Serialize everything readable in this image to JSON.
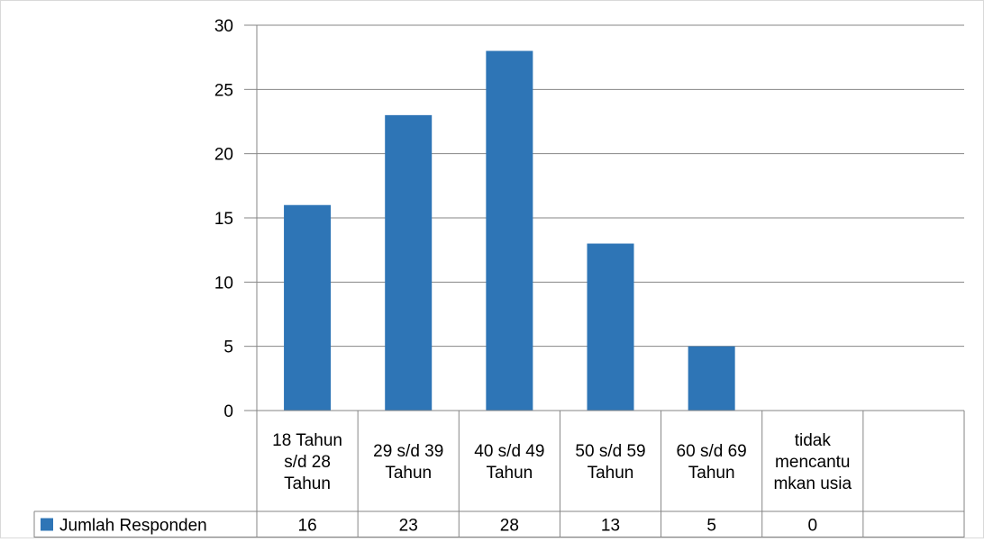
{
  "chart_data": {
    "type": "bar",
    "categories": [
      [
        "18 Tahun",
        "s/d 28",
        "Tahun"
      ],
      [
        "29 s/d 39",
        "Tahun"
      ],
      [
        "40 s/d 49",
        "Tahun"
      ],
      [
        "50 s/d 59",
        "Tahun"
      ],
      [
        "60 s/d 69",
        "Tahun"
      ],
      [
        "tidak",
        "mencantu",
        "mkan usia"
      ],
      [
        ""
      ]
    ],
    "series": [
      {
        "name": "Jumlah Responden",
        "values": [
          16,
          23,
          28,
          13,
          5,
          0,
          null
        ],
        "table_values": [
          "16",
          "23",
          "28",
          "13",
          "5",
          "0",
          ""
        ],
        "color": "#2e75b6"
      }
    ],
    "ylim": [
      0,
      30
    ],
    "yticks": [
      0,
      5,
      10,
      15,
      20,
      25,
      30
    ],
    "grid": true,
    "data_table": true,
    "legend": "data-table-left",
    "colors": {
      "bar": "#2e75b6",
      "grid": "#868686",
      "table_border": "#868686",
      "frame": "#d9d9d9"
    }
  }
}
